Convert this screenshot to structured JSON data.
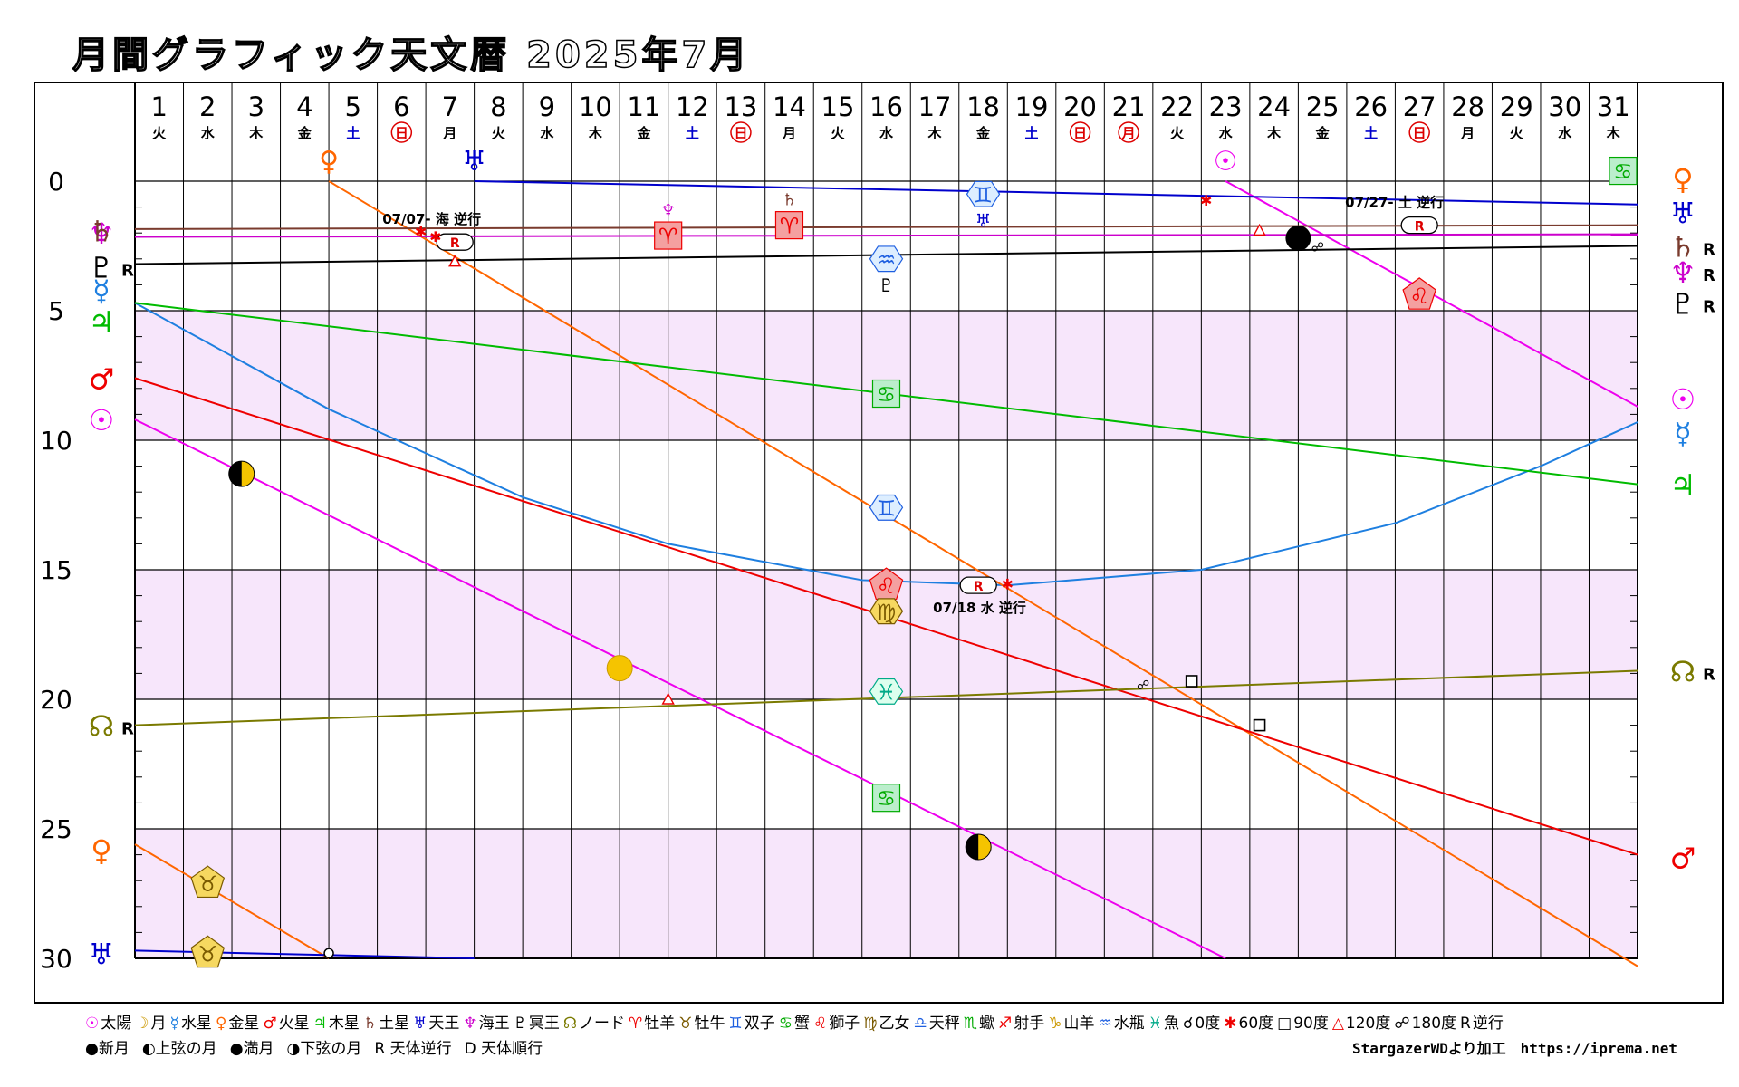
{
  "title": "月間グラフィック天文暦 2025年7月",
  "chart_data": {
    "type": "line",
    "x_label_days": [
      "1",
      "2",
      "3",
      "4",
      "5",
      "6",
      "7",
      "8",
      "9",
      "10",
      "11",
      "12",
      "13",
      "14",
      "15",
      "16",
      "17",
      "18",
      "19",
      "20",
      "21",
      "22",
      "23",
      "24",
      "25",
      "26",
      "27",
      "28",
      "29",
      "30",
      "31"
    ],
    "weekdays": [
      "火",
      "水",
      "木",
      "金",
      "土",
      "日",
      "月",
      "火",
      "水",
      "木",
      "金",
      "土",
      "日",
      "月",
      "火",
      "水",
      "木",
      "金",
      "土",
      "日",
      "月",
      "火",
      "水",
      "木",
      "金",
      "土",
      "日",
      "月",
      "火",
      "水",
      "木"
    ],
    "weekday_colors": {
      "土": "#0000cc",
      "日": "#dd0000",
      "月_holiday_21": "#dd0000"
    },
    "y_ticks": [
      "0",
      "5",
      "10",
      "15",
      "20",
      "25",
      "30"
    ],
    "ylim": [
      0,
      30
    ],
    "xlim": [
      1,
      32
    ],
    "series": [
      {
        "name": "太陽",
        "symbol": "☉",
        "color": "#ee00ee",
        "points": [
          [
            1,
            9.2
          ],
          [
            23.5,
            30
          ],
          [
            23.5,
            0
          ],
          [
            32,
            8.7
          ]
        ]
      },
      {
        "name": "月",
        "symbol": "☽",
        "color": "#ee00ee",
        "points": []
      },
      {
        "name": "水星",
        "symbol": "☿",
        "color": "#1e7fe0",
        "points": [
          [
            1,
            4.7
          ],
          [
            5,
            8.8
          ],
          [
            9,
            12.2
          ],
          [
            12,
            14.0
          ],
          [
            16,
            15.4
          ],
          [
            19,
            15.6
          ],
          [
            23,
            15.0
          ],
          [
            27,
            13.2
          ],
          [
            30,
            11.0
          ],
          [
            32,
            9.3
          ]
        ]
      },
      {
        "name": "金星",
        "symbol": "♀",
        "color": "#ff6600",
        "points": [
          [
            1,
            25.6
          ],
          [
            5,
            30
          ],
          [
            5,
            0
          ],
          [
            32,
            30.3
          ]
        ]
      },
      {
        "name": "火星",
        "symbol": "♂",
        "color": "#ee0000",
        "points": [
          [
            1,
            7.6
          ],
          [
            32,
            26.0
          ]
        ]
      },
      {
        "name": "木星",
        "symbol": "♃",
        "color": "#00bb00",
        "points": [
          [
            1,
            4.7
          ],
          [
            32,
            11.7
          ]
        ]
      },
      {
        "name": "土星",
        "symbol": "♄",
        "color": "#7a3b2e",
        "points": [
          [
            1,
            1.85
          ],
          [
            32,
            1.7
          ]
        ]
      },
      {
        "name": "天王",
        "symbol": "♅",
        "color": "#0000cc",
        "points": [
          [
            1,
            29.7
          ],
          [
            8,
            30
          ],
          [
            8,
            0
          ],
          [
            32,
            0.9
          ]
        ]
      },
      {
        "name": "海王",
        "symbol": "♆",
        "color": "#cc00cc",
        "points": [
          [
            1,
            2.15
          ],
          [
            32,
            2.05
          ]
        ]
      },
      {
        "name": "冥王",
        "symbol": "♇",
        "color": "#000000",
        "points": [
          [
            1,
            3.2
          ],
          [
            32,
            2.5
          ]
        ]
      },
      {
        "name": "ノード",
        "symbol": "☊",
        "color": "#7a7a00",
        "points": [
          [
            1,
            21.0
          ],
          [
            32,
            18.9
          ]
        ]
      }
    ],
    "left_labels": [
      {
        "symbol": "♆",
        "color": "#cc00cc",
        "y": 2.0,
        "retro": false
      },
      {
        "symbol": "♄",
        "color": "#7a3b2e",
        "y": 1.9,
        "retro": false
      },
      {
        "symbol": "♇",
        "color": "#000000",
        "y": 3.3,
        "retro": true
      },
      {
        "symbol": "☿",
        "color": "#1e7fe0",
        "y": 4.2,
        "retro": false
      },
      {
        "symbol": "♃",
        "color": "#00bb00",
        "y": 5.4,
        "retro": false
      },
      {
        "symbol": "♂",
        "color": "#ee0000",
        "y": 7.6,
        "retro": false
      },
      {
        "symbol": "☉",
        "color": "#ee00ee",
        "y": 9.2,
        "retro": false
      },
      {
        "symbol": "☊",
        "color": "#7a7a00",
        "y": 21.0,
        "retro": true
      },
      {
        "symbol": "♀",
        "color": "#ff6600",
        "y": 25.8,
        "retro": false
      },
      {
        "symbol": "♅",
        "color": "#0000cc",
        "y": 29.8,
        "retro": false
      }
    ],
    "right_labels": [
      {
        "symbol": "♀",
        "color": "#ff6600",
        "y": -0.1,
        "retro": false
      },
      {
        "symbol": "♅",
        "color": "#0000cc",
        "y": 1.2,
        "retro": false
      },
      {
        "symbol": "♄",
        "color": "#7a3b2e",
        "y": 2.5,
        "retro": true
      },
      {
        "symbol": "♆",
        "color": "#cc00cc",
        "y": 3.5,
        "retro": true
      },
      {
        "symbol": "♇",
        "color": "#000000",
        "y": 4.7,
        "retro": true
      },
      {
        "symbol": "☉",
        "color": "#ee00ee",
        "y": 8.4,
        "retro": false
      },
      {
        "symbol": "☿",
        "color": "#1e7fe0",
        "y": 9.7,
        "retro": false
      },
      {
        "symbol": "♃",
        "color": "#00bb00",
        "y": 11.7,
        "retro": false
      },
      {
        "symbol": "☊",
        "color": "#7a7a00",
        "y": 18.9,
        "retro": true
      },
      {
        "symbol": "♂",
        "color": "#ee0000",
        "y": 26.1,
        "retro": false
      }
    ],
    "top_labels": [
      {
        "symbol": "♀",
        "color": "#ff6600",
        "day": 5
      },
      {
        "symbol": "♅",
        "color": "#0000cc",
        "day": 8
      },
      {
        "symbol": "☉",
        "color": "#ee00ee",
        "day": 23.5
      }
    ],
    "sign_markers": [
      {
        "symbol": "♈",
        "day": 12,
        "y": 2.1,
        "bg": "#f4a0a0",
        "fg": "#ee0000",
        "shape": "square",
        "above": "♆",
        "above_color": "#cc00cc"
      },
      {
        "symbol": "♈",
        "day": 14.5,
        "y": 1.7,
        "bg": "#f4a0a0",
        "fg": "#ee0000",
        "shape": "square",
        "above": "♄",
        "above_color": "#7a3b2e"
      },
      {
        "symbol": "♊",
        "day": 18.5,
        "y": 0.5,
        "bg": "#ddeeff",
        "fg": "#1e5fe0",
        "shape": "hex",
        "below": "♅",
        "below_color": "#0000cc"
      },
      {
        "symbol": "♒",
        "day": 16.5,
        "y": 3.0,
        "bg": "#ddeeff",
        "fg": "#1e5fe0",
        "shape": "hex",
        "below": "♇",
        "below_color": "#000000"
      },
      {
        "symbol": "♌",
        "day": 27.5,
        "y": 4.4,
        "bg": "#f4a0a0",
        "fg": "#ee0000",
        "shape": "pent"
      },
      {
        "symbol": "♋",
        "day": 31.7,
        "y": -0.4,
        "bg": "#bbeecc",
        "fg": "#00aa00",
        "shape": "square"
      },
      {
        "symbol": "♋",
        "day": 16.5,
        "y": 8.2,
        "bg": "#bbeecc",
        "fg": "#00aa00",
        "shape": "square"
      },
      {
        "symbol": "♊",
        "day": 16.5,
        "y": 12.6,
        "bg": "#ddeeff",
        "fg": "#1e5fe0",
        "shape": "hex"
      },
      {
        "symbol": "♌",
        "day": 16.5,
        "y": 15.6,
        "bg": "#f4a0a0",
        "fg": "#ee0000",
        "shape": "pent"
      },
      {
        "symbol": "♍",
        "day": 16.5,
        "y": 16.6,
        "bg": "#f6d860",
        "fg": "#7a5a00",
        "shape": "hex"
      },
      {
        "symbol": "♓",
        "day": 16.5,
        "y": 19.7,
        "bg": "#ddffee",
        "fg": "#00aa88",
        "shape": "hex"
      },
      {
        "symbol": "♋",
        "day": 16.5,
        "y": 23.8,
        "bg": "#bbeecc",
        "fg": "#00aa00",
        "shape": "square"
      },
      {
        "symbol": "♉",
        "day": 2.5,
        "y": 27.1,
        "bg": "#f6d860",
        "fg": "#7a5a00",
        "shape": "pent"
      },
      {
        "symbol": "♉",
        "day": 2.5,
        "y": 29.8,
        "bg": "#f6d860",
        "fg": "#7a5a00",
        "shape": "pent"
      }
    ],
    "moon_phases": [
      {
        "type": "上弦の月",
        "day": 3.2,
        "y": 11.3
      },
      {
        "type": "満月",
        "day": 11,
        "y": 18.8
      },
      {
        "type": "下弦の月",
        "day": 18.4,
        "y": 25.7
      },
      {
        "type": "新月",
        "day": 25,
        "y": 2.2
      }
    ],
    "retro_markers": [
      {
        "day": 7.6,
        "y": 2.35,
        "label": "07/07- 海 逆行",
        "kind": "R"
      },
      {
        "day": 18.4,
        "y": 15.6,
        "label": "07/18 水 逆行",
        "kind": "R"
      },
      {
        "day": 27.5,
        "y": 1.7,
        "label": "07/27- 土 逆行",
        "kind": "R"
      }
    ],
    "aspects": [
      {
        "kind": "60度",
        "day": 6.9,
        "y": 1.9
      },
      {
        "kind": "60度",
        "day": 7.2,
        "y": 2.1
      },
      {
        "kind": "120度",
        "day": 7.6,
        "y": 3.1
      },
      {
        "kind": "60度",
        "day": 19,
        "y": 15.5
      },
      {
        "kind": "60度",
        "day": 23.1,
        "y": 0.7
      },
      {
        "kind": "120度",
        "day": 24.2,
        "y": 1.9
      },
      {
        "kind": "180度",
        "day": 25.4,
        "y": 2.5
      },
      {
        "kind": "120度",
        "day": 12,
        "y": 20.0
      },
      {
        "kind": "180度",
        "day": 21.8,
        "y": 19.4
      },
      {
        "kind": "90度",
        "day": 22.8,
        "y": 19.3
      },
      {
        "kind": "90度",
        "day": 24.2,
        "y": 21.0
      },
      {
        "kind": "0度",
        "day": 5,
        "y": 29.8
      }
    ]
  },
  "legend": {
    "row1": [
      "☉太陽",
      "☽月",
      "☿水星",
      "♀金星",
      "♂火星",
      "♃木星",
      "♄土星",
      "♅天王",
      "♆海王",
      "♇冥王",
      "☊ノード",
      "♈牡羊",
      "♉牡牛",
      "♊双子",
      "♋蟹",
      "♌獅子",
      "♍乙女",
      "♎天秤",
      "♏蠍",
      "♐射手",
      "♑山羊",
      "♒水瓶",
      "♓魚",
      "☌0度",
      "✱60度",
      "□90度",
      "△120度",
      "☍180度",
      "R逆行"
    ],
    "row1_colors": [
      "#ee00ee",
      "#cc9900",
      "#1e7fe0",
      "#ff6600",
      "#ee0000",
      "#00bb00",
      "#7a3b2e",
      "#0000cc",
      "#cc00cc",
      "#000000",
      "#7a7a00",
      "#ee0000",
      "#7a5a00",
      "#1e5fe0",
      "#00aa00",
      "#ee0000",
      "#7a5a00",
      "#1e5fe0",
      "#00aa00",
      "#ee0000",
      "#cc9900",
      "#1e5fe0",
      "#00aa88",
      "#000000",
      "#ee0000",
      "#000000",
      "#ee0000",
      "#000000",
      "#000000"
    ],
    "row2": [
      "●新月",
      "◐上弦の月",
      "●満月",
      "◑下弦の月",
      "R 天体逆行",
      "D 天体順行"
    ],
    "credit": "StargazerWDより加工　https://iprema.net"
  }
}
